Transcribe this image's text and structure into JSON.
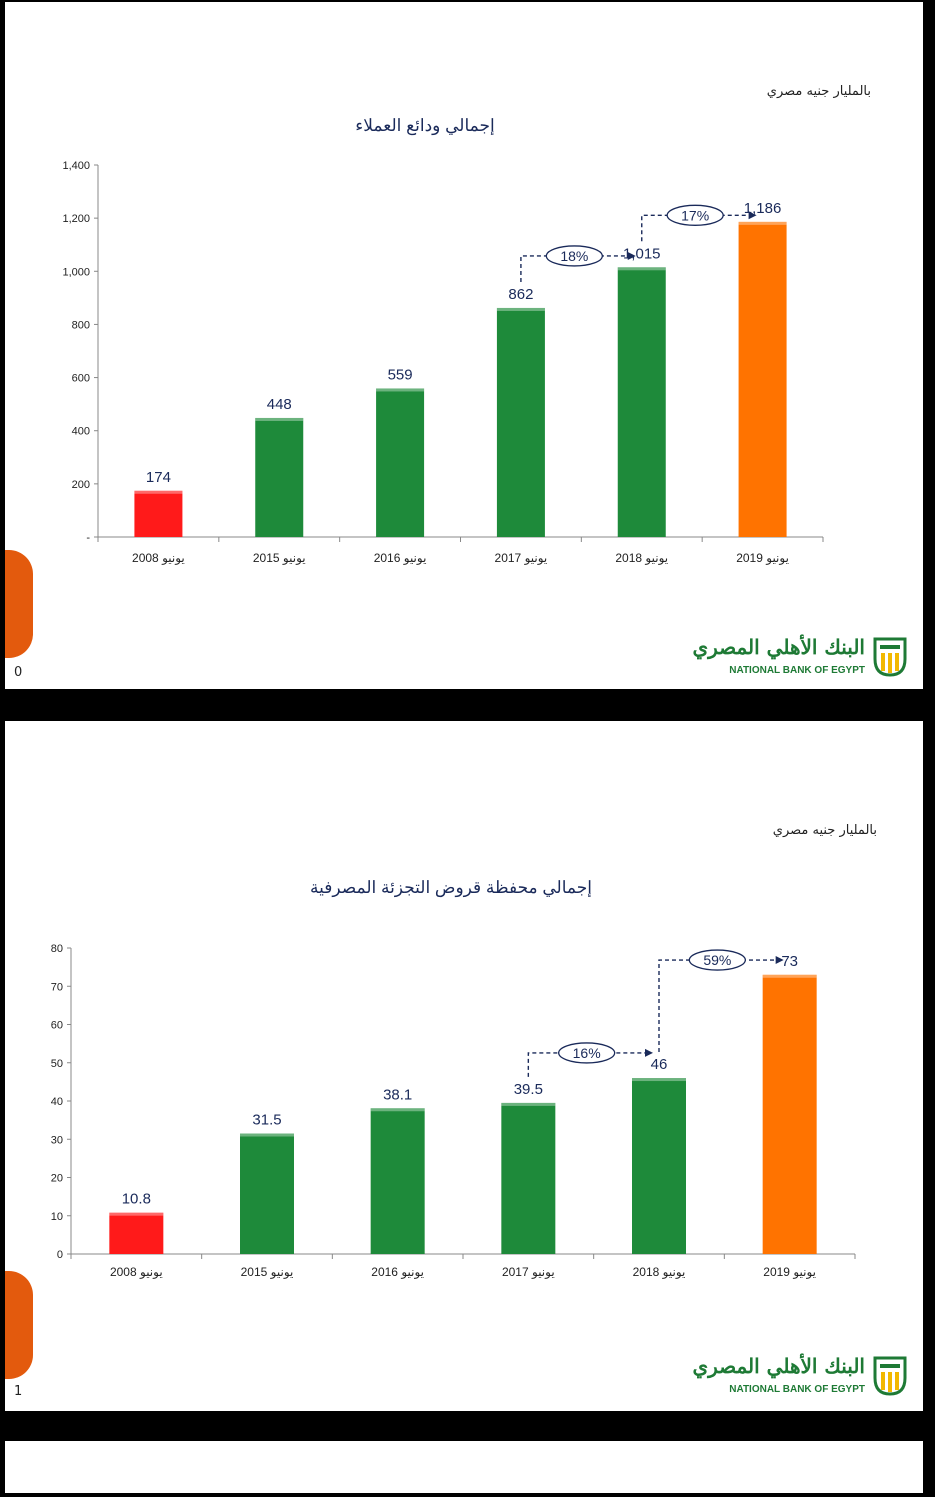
{
  "charts": [
    {
      "id": "c1",
      "unit_label": "بالمليار جنيه مصري",
      "slide_number": "0",
      "logo": {
        "arabic": "البنك الأهلي المصري",
        "english": "NATIONAL BANK OF EGYPT"
      },
      "chart_data": {
        "type": "bar",
        "title": "إجمالي ودائع العملاء",
        "categories": [
          "يونيو 2008",
          "يونيو 2015",
          "يونيو 2016",
          "يونيو 2017",
          "يونيو 2018",
          "يونيو 2019"
        ],
        "values": [
          174,
          448,
          559,
          862,
          1015,
          1186
        ],
        "value_labels": [
          "174",
          "448",
          "559",
          "862",
          "1,015",
          "1,186"
        ],
        "bar_colors": [
          "#ff1a1a",
          "#1e8a3a",
          "#1e8a3a",
          "#1e8a3a",
          "#1e8a3a",
          "#ff7300"
        ],
        "ylim": [
          0,
          1400
        ],
        "yticks": [
          0,
          200,
          400,
          600,
          800,
          1000,
          1200,
          1400
        ],
        "ytick_labels": [
          "-",
          "200",
          "400",
          "600",
          "800",
          "1,000",
          "1,200",
          "1,400"
        ],
        "xlabel": "",
        "ylabel": "",
        "grid": false,
        "growth_annotations": [
          {
            "from": 3,
            "to": 4,
            "label": "18%"
          },
          {
            "from": 4,
            "to": 5,
            "label": "17%"
          }
        ]
      }
    },
    {
      "id": "c2",
      "unit_label": "بالمليار جنيه مصري",
      "slide_number": "1",
      "logo": {
        "arabic": "البنك الأهلي المصري",
        "english": "NATIONAL BANK OF EGYPT"
      },
      "chart_data": {
        "type": "bar",
        "title": "إجمالي محفظة قروض التجزئة المصرفية",
        "categories": [
          "يونيو 2008",
          "يونيو 2015",
          "يونيو 2016",
          "يونيو 2017",
          "يونيو 2018",
          "يونيو 2019"
        ],
        "values": [
          10.8,
          31.5,
          38.1,
          39.5,
          46,
          73
        ],
        "value_labels": [
          "10.8",
          "31.5",
          "38.1",
          "39.5",
          "46",
          "73"
        ],
        "bar_colors": [
          "#ff1a1a",
          "#1e8a3a",
          "#1e8a3a",
          "#1e8a3a",
          "#1e8a3a",
          "#ff7300"
        ],
        "ylim": [
          0,
          80
        ],
        "yticks": [
          0,
          10,
          20,
          30,
          40,
          50,
          60,
          70,
          80
        ],
        "ytick_labels": [
          "0",
          "10",
          "20",
          "30",
          "40",
          "50",
          "60",
          "70",
          "80"
        ],
        "xlabel": "",
        "ylabel": "",
        "grid": false,
        "growth_annotations": [
          {
            "from": 3,
            "to": 4,
            "label": "16%"
          },
          {
            "from": 4,
            "to": 5,
            "label": "59%"
          }
        ]
      }
    }
  ]
}
